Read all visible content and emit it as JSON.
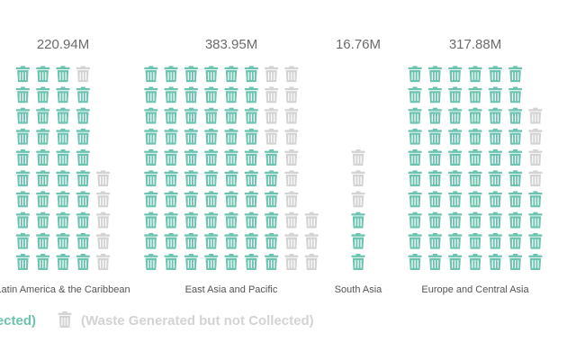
{
  "colors": {
    "collected": "#6cc3b0",
    "not_collected": "#d3d3d3"
  },
  "icons": {
    "unit": "trash-bin-icon"
  },
  "legend": {
    "collected_label": "(Waste Collected)",
    "not_collected_label": "(Waste Generated but not Collected)"
  },
  "chart_data": {
    "type": "pictogram",
    "categories": [
      "Latin America & the Caribbean",
      "East Asia and Pacific",
      "South Asia",
      "Europe and Central Asia"
    ],
    "totals": [
      "220.94M",
      "383.95M",
      "16.76M",
      "317.88M"
    ],
    "series": [
      {
        "name": "(Waste Collected)",
        "values": [
          39,
          66,
          3,
          64
        ]
      },
      {
        "name": "(Waste Generated but not Collected)",
        "values": [
          6,
          17,
          3,
          4
        ]
      }
    ],
    "icons_per_column": 10
  }
}
